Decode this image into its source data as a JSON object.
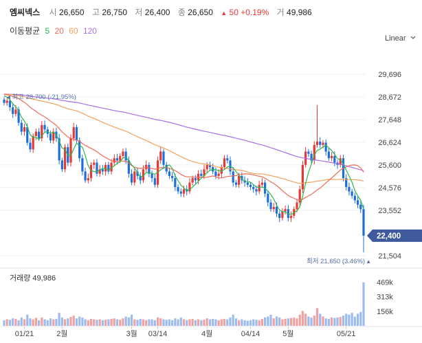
{
  "header": {
    "name": "엠씨넥스",
    "open_label": "시",
    "open": "26,650",
    "high_label": "고",
    "high": "26,750",
    "low_label": "저",
    "low": "26,400",
    "close_label": "종",
    "close": "26,650",
    "change_arrow": "▲",
    "change": "50",
    "change_pct": "+0.19%",
    "volume_label": "거",
    "volume": "49,986"
  },
  "ma_legend": {
    "label": "이동평균",
    "items": [
      {
        "period": "5",
        "color": "#2db84d"
      },
      {
        "period": "20",
        "color": "#f06a55"
      },
      {
        "period": "60",
        "color": "#f5a05a"
      },
      {
        "period": "120",
        "color": "#a86ee8"
      }
    ]
  },
  "scale_button": "Linear",
  "chart_data": {
    "type": "candlestick",
    "price_axis": {
      "ticks": [
        29696,
        28672,
        27648,
        26624,
        25600,
        24576,
        23552,
        21504
      ],
      "range": [
        21000,
        30500
      ]
    },
    "x_labels": [
      "01/21",
      "2월",
      "3월",
      "03/14",
      "4월",
      "04/14",
      "5월",
      "05/21"
    ],
    "last_price_label": "22,400",
    "high_marker": "최고 28,700 (-21.95%)",
    "low_marker": "최저 21,650 (3.46%)",
    "volume_title": "거래량 49,986",
    "volume_ticks": [
      "469k",
      "313k",
      "156k"
    ],
    "volume_max": 600000,
    "up_color": "#e53935",
    "down_color": "#1e6fd9",
    "closes": [
      28400,
      28500,
      28200,
      27900,
      28100,
      27500,
      27100,
      27300,
      26600,
      26300,
      26900,
      27100,
      26800,
      27400,
      27200,
      27000,
      26700,
      27100,
      26800,
      25800,
      25400,
      26400,
      25700,
      26800,
      27300,
      26700,
      25900,
      25300,
      24900,
      25000,
      25600,
      25700,
      25200,
      25400,
      25300,
      25600,
      25300,
      25700,
      25900,
      25800,
      26000,
      26200,
      25800,
      25200,
      24800,
      25300,
      25100,
      24900,
      25400,
      25600,
      25200,
      25000,
      24700,
      25800,
      26200,
      25600,
      25300,
      25100,
      25000,
      24600,
      24400,
      24300,
      24500,
      24400,
      24800,
      25000,
      24900,
      25200,
      25100,
      25400,
      25600,
      25500,
      25300,
      25100,
      25200,
      25500,
      25900,
      25800,
      25300,
      24800,
      24700,
      25100,
      24900,
      24800,
      24700,
      24600,
      24500,
      24400,
      24700,
      24800,
      24300,
      23900,
      23600,
      23700,
      23400,
      23200,
      23500,
      23600,
      23200,
      23300,
      23600,
      23900,
      24500,
      25600,
      26200,
      26100,
      25800,
      26500,
      26650,
      26500,
      26600,
      26200,
      25900,
      26000,
      25700,
      25600,
      25900,
      25000,
      24600,
      24400,
      24200,
      24000,
      23800,
      23600,
      22400
    ],
    "volumes": [
      60000,
      70000,
      65000,
      80000,
      75000,
      60000,
      90000,
      70000,
      120000,
      80000,
      70000,
      85000,
      60000,
      90000,
      70000,
      60000,
      80000,
      70000,
      75000,
      140000,
      90000,
      70000,
      80000,
      95000,
      110000,
      80000,
      100000,
      90000,
      70000,
      60000,
      75000,
      70000,
      65000,
      70000,
      60000,
      65000,
      70000,
      75000,
      80000,
      70000,
      65000,
      80000,
      100000,
      90000,
      120000,
      70000,
      65000,
      75000,
      70000,
      60000,
      70000,
      70000,
      60000,
      90000,
      80000,
      70000,
      65000,
      70000,
      60000,
      80000,
      70000,
      90000,
      70000,
      60000,
      70000,
      75000,
      60000,
      70000,
      60000,
      65000,
      80000,
      70000,
      75000,
      70000,
      60000,
      70000,
      75000,
      70000,
      90000,
      120000,
      80000,
      60000,
      70000,
      60000,
      55000,
      60000,
      70000,
      65000,
      60000,
      75000,
      90000,
      100000,
      120000,
      80000,
      100000,
      90000,
      70000,
      75000,
      80000,
      85000,
      90000,
      80000,
      120000,
      160000,
      130000,
      100000,
      90000,
      110000,
      190000,
      130000,
      100000,
      80000,
      75000,
      90000,
      85000,
      90000,
      95000,
      110000,
      130000,
      120000,
      140000,
      100000,
      130000,
      150000,
      469000
    ]
  }
}
